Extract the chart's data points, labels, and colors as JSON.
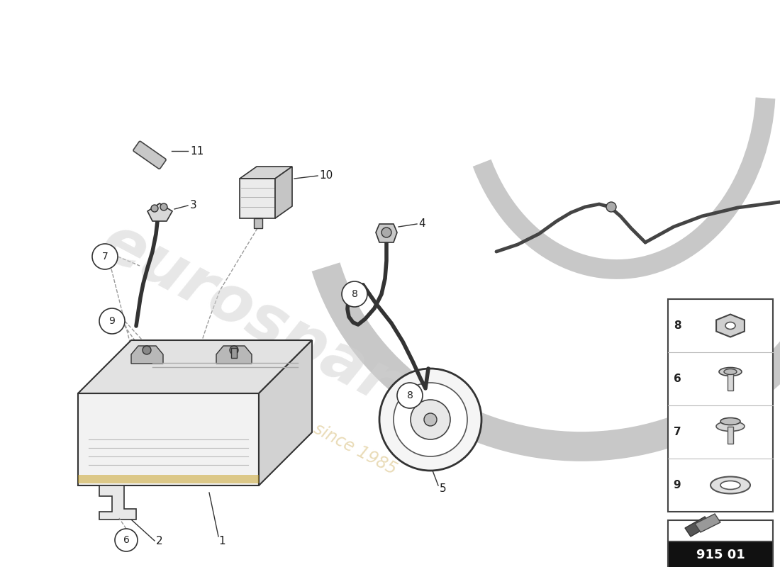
{
  "bg_color": "#ffffff",
  "fig_size": [
    11.0,
    8.0
  ],
  "dpi": 100,
  "label_color": "#1a1a1a",
  "line_color": "#333333",
  "dashed_color": "#999999",
  "watermark_color": "#d0d0d0",
  "watermark_sub_color": "#d4b870",
  "arc_color": "#c8c8c8"
}
